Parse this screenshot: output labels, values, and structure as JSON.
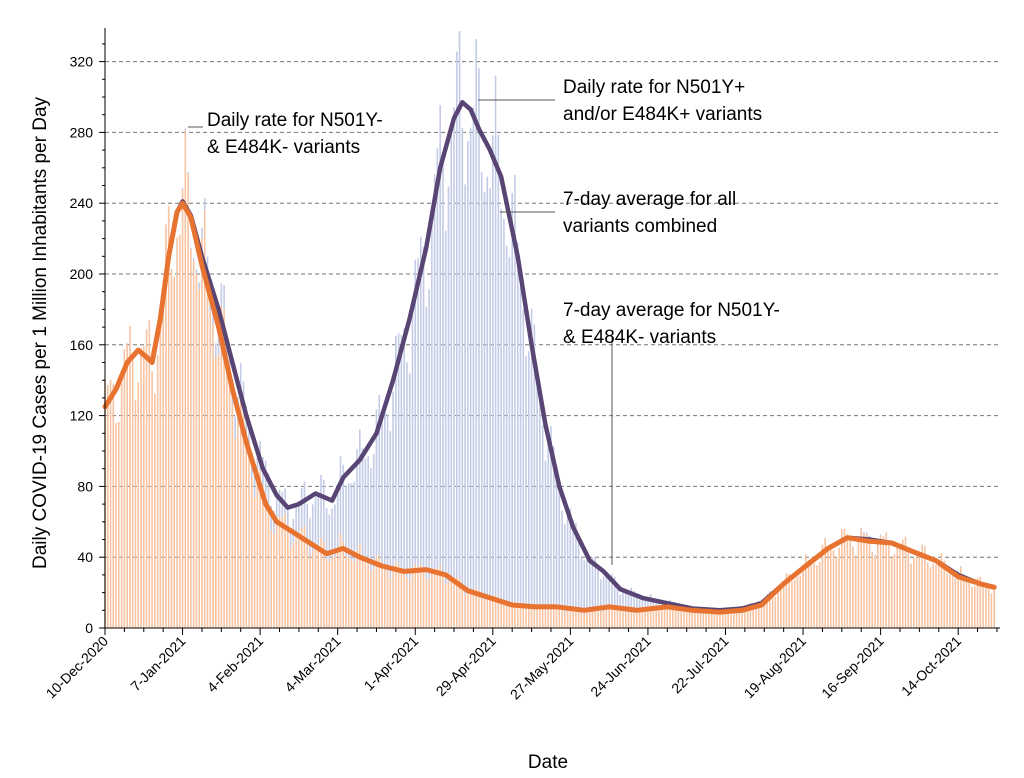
{
  "chart_data": {
    "type": "bar+line",
    "title": "",
    "xlabel": "Date",
    "ylabel": "Daily COVID-19 Cases per 1 Million Inhabitants per Day",
    "ylim": [
      0,
      340
    ],
    "yticks": [
      0,
      40,
      80,
      120,
      160,
      200,
      240,
      280,
      320
    ],
    "grid": "horizontal dashed",
    "x_start": "2020-12-10",
    "x_ticks": [
      "10-Dec-2020",
      "7-Jan-2021",
      "4-Feb-2021",
      "4-Mar-2021",
      "1-Apr-2021",
      "29-Apr-2021",
      "27-May-2021",
      "24-Jun-2021",
      "22-Jul-2021",
      "19-Aug-2021",
      "16-Sep-2021",
      "14-Oct-2021"
    ],
    "colors": {
      "bars_minus": "#f7c3a1",
      "bars_plus": "#c3cbe6",
      "avg_all": "#594573",
      "avg_minus": "#e8722f"
    },
    "annotations": [
      {
        "lines": [
          "Daily rate for N501Y-",
          "& E484K- variants"
        ]
      },
      {
        "lines": [
          "Daily rate for N501Y+",
          "and/or E484K+ variants"
        ]
      },
      {
        "lines": [
          "7-day average for all",
          "variants combined"
        ]
      },
      {
        "lines": [
          "7-day average for N501Y-",
          "& E484K- variants"
        ]
      }
    ],
    "series": [
      {
        "kind": "line",
        "key": "avg_all",
        "points": [
          [
            "2020-12-10",
            125
          ],
          [
            "2020-12-14",
            135
          ],
          [
            "2020-12-18",
            150
          ],
          [
            "2020-12-22",
            157
          ],
          [
            "2020-12-25",
            153
          ],
          [
            "2020-12-27",
            150
          ],
          [
            "2020-12-30",
            175
          ],
          [
            "2021-01-02",
            210
          ],
          [
            "2021-01-05",
            235
          ],
          [
            "2021-01-07",
            241
          ],
          [
            "2021-01-10",
            233
          ],
          [
            "2021-01-14",
            210
          ],
          [
            "2021-01-20",
            180
          ],
          [
            "2021-01-25",
            150
          ],
          [
            "2021-01-30",
            120
          ],
          [
            "2021-02-05",
            90
          ],
          [
            "2021-02-10",
            75
          ],
          [
            "2021-02-14",
            68
          ],
          [
            "2021-02-18",
            70
          ],
          [
            "2021-02-24",
            76
          ],
          [
            "2021-03-02",
            72
          ],
          [
            "2021-03-06",
            85
          ],
          [
            "2021-03-12",
            95
          ],
          [
            "2021-03-18",
            110
          ],
          [
            "2021-03-24",
            140
          ],
          [
            "2021-03-30",
            175
          ],
          [
            "2021-04-05",
            215
          ],
          [
            "2021-04-10",
            260
          ],
          [
            "2021-04-15",
            288
          ],
          [
            "2021-04-18",
            297
          ],
          [
            "2021-04-21",
            293
          ],
          [
            "2021-04-24",
            282
          ],
          [
            "2021-04-28",
            270
          ],
          [
            "2021-05-02",
            255
          ],
          [
            "2021-05-08",
            210
          ],
          [
            "2021-05-13",
            160
          ],
          [
            "2021-05-18",
            115
          ],
          [
            "2021-05-23",
            80
          ],
          [
            "2021-05-28",
            57
          ],
          [
            "2021-06-03",
            38
          ],
          [
            "2021-06-08",
            32
          ],
          [
            "2021-06-14",
            22
          ],
          [
            "2021-06-22",
            17
          ],
          [
            "2021-07-01",
            14
          ],
          [
            "2021-07-10",
            11
          ],
          [
            "2021-07-20",
            10
          ],
          [
            "2021-07-28",
            11
          ],
          [
            "2021-08-04",
            14
          ],
          [
            "2021-08-12",
            25
          ],
          [
            "2021-08-20",
            35
          ],
          [
            "2021-08-28",
            45
          ],
          [
            "2021-09-04",
            51
          ],
          [
            "2021-09-12",
            50
          ],
          [
            "2021-09-20",
            48
          ],
          [
            "2021-09-28",
            43
          ],
          [
            "2021-10-06",
            38
          ],
          [
            "2021-10-14",
            30
          ],
          [
            "2021-10-22",
            25
          ],
          [
            "2021-10-27",
            23
          ]
        ]
      },
      {
        "kind": "line",
        "key": "avg_minus",
        "points": [
          [
            "2020-12-10",
            125
          ],
          [
            "2020-12-14",
            135
          ],
          [
            "2020-12-18",
            150
          ],
          [
            "2020-12-22",
            157
          ],
          [
            "2020-12-25",
            153
          ],
          [
            "2020-12-27",
            150
          ],
          [
            "2020-12-30",
            175
          ],
          [
            "2021-01-02",
            210
          ],
          [
            "2021-01-05",
            235
          ],
          [
            "2021-01-07",
            240
          ],
          [
            "2021-01-10",
            232
          ],
          [
            "2021-01-14",
            205
          ],
          [
            "2021-01-20",
            170
          ],
          [
            "2021-01-25",
            135
          ],
          [
            "2021-01-30",
            105
          ],
          [
            "2021-02-03",
            85
          ],
          [
            "2021-02-06",
            70
          ],
          [
            "2021-02-10",
            60
          ],
          [
            "2021-02-15",
            55
          ],
          [
            "2021-02-20",
            50
          ],
          [
            "2021-02-28",
            42
          ],
          [
            "2021-03-06",
            45
          ],
          [
            "2021-03-12",
            40
          ],
          [
            "2021-03-20",
            35
          ],
          [
            "2021-03-28",
            32
          ],
          [
            "2021-04-05",
            33
          ],
          [
            "2021-04-12",
            30
          ],
          [
            "2021-04-20",
            21
          ],
          [
            "2021-04-28",
            17
          ],
          [
            "2021-05-06",
            13
          ],
          [
            "2021-05-14",
            12
          ],
          [
            "2021-05-22",
            12
          ],
          [
            "2021-06-01",
            10
          ],
          [
            "2021-06-10",
            12
          ],
          [
            "2021-06-20",
            10
          ],
          [
            "2021-07-01",
            12
          ],
          [
            "2021-07-10",
            10
          ],
          [
            "2021-07-20",
            9
          ],
          [
            "2021-07-28",
            10
          ],
          [
            "2021-08-04",
            13
          ],
          [
            "2021-08-12",
            25
          ],
          [
            "2021-08-20",
            35
          ],
          [
            "2021-08-28",
            45
          ],
          [
            "2021-09-04",
            51
          ],
          [
            "2021-09-12",
            49
          ],
          [
            "2021-09-20",
            48
          ],
          [
            "2021-09-28",
            43
          ],
          [
            "2021-10-06",
            38
          ],
          [
            "2021-10-14",
            29
          ],
          [
            "2021-10-22",
            25
          ],
          [
            "2021-10-27",
            23
          ]
        ]
      }
    ],
    "daily_bars_note": "Daily bars (N501Y-/E484K- in orange, N501Y+/E484K+ stacked in blue) fluctuate around the 7-day averages with a weekly cycle."
  }
}
